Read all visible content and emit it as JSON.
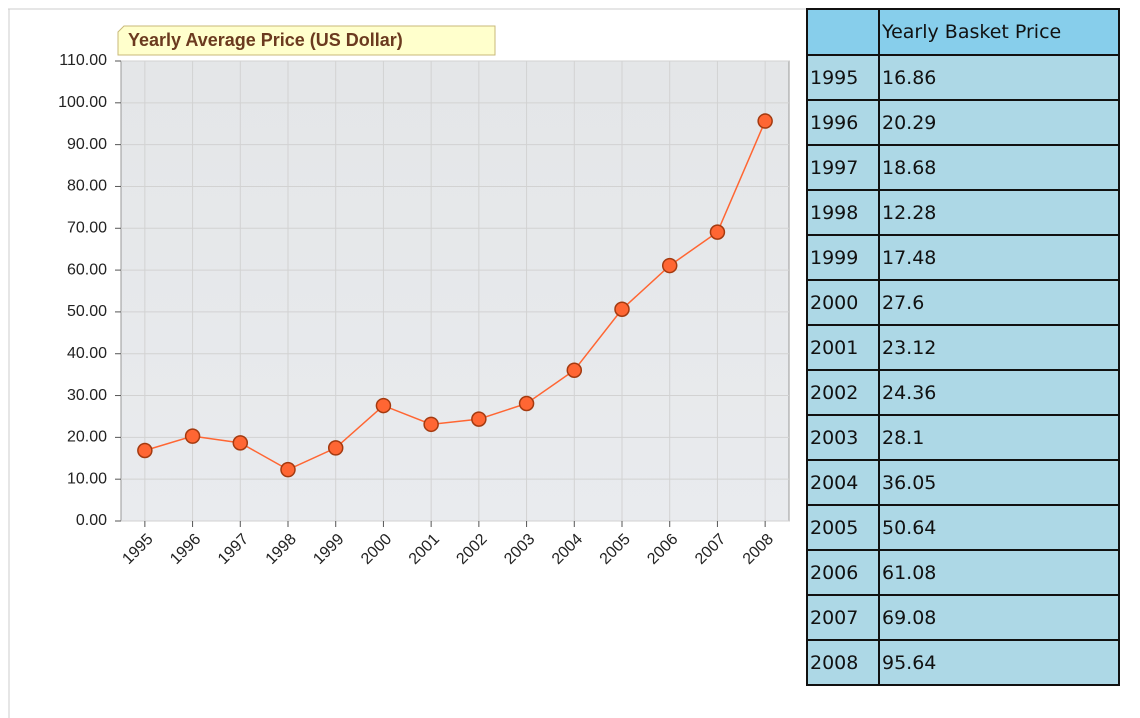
{
  "chart_data": {
    "type": "line",
    "title": "Yearly Average Price (US Dollar)",
    "categories": [
      "1995",
      "1996",
      "1997",
      "1998",
      "1999",
      "2000",
      "2001",
      "2002",
      "2003",
      "2004",
      "2005",
      "2006",
      "2007",
      "2008"
    ],
    "values": [
      16.86,
      20.29,
      18.68,
      12.28,
      17.48,
      27.6,
      23.12,
      24.36,
      28.1,
      36.05,
      50.64,
      61.08,
      69.08,
      95.64
    ],
    "color": "#ff6633",
    "ylim": [
      0,
      110
    ],
    "yticks": [
      {
        "value": 0,
        "label": "0.00"
      },
      {
        "value": 10,
        "label": "10.00"
      },
      {
        "value": 20,
        "label": "20.00"
      },
      {
        "value": 30,
        "label": "30.00"
      },
      {
        "value": 40,
        "label": "40.00"
      },
      {
        "value": 50,
        "label": "50.00"
      },
      {
        "value": 60,
        "label": "60.00"
      },
      {
        "value": 70,
        "label": "70.00"
      },
      {
        "value": 80,
        "label": "80.00"
      },
      {
        "value": 90,
        "label": "90.00"
      },
      {
        "value": 100,
        "label": "100.00"
      },
      {
        "value": 110,
        "label": "110.00"
      }
    ],
    "grid": true
  },
  "table": {
    "header": "Yearly Basket Price"
  }
}
